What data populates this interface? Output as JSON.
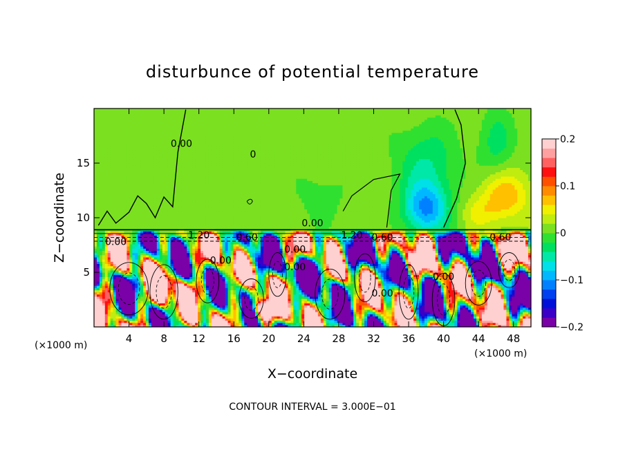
{
  "chart_data": {
    "type": "heatmap",
    "title": "disturbunce of potential temperature",
    "xlabel": "X−coordinate",
    "ylabel": "Z−coordinate",
    "x_unit_label": "(×1000 m)",
    "y_unit_label": "(×1000 m)",
    "footer": "CONTOUR INTERVAL = 3.000E−01",
    "xlim": [
      0,
      50
    ],
    "ylim": [
      0,
      20
    ],
    "x_ticks": [
      {
        "value": 4,
        "label": "4"
      },
      {
        "value": 8,
        "label": "8"
      },
      {
        "value": 12,
        "label": "12"
      },
      {
        "value": 16,
        "label": "16"
      },
      {
        "value": 20,
        "label": "20"
      },
      {
        "value": 24,
        "label": "24"
      },
      {
        "value": 28,
        "label": "28"
      },
      {
        "value": 32,
        "label": "32"
      },
      {
        "value": 36,
        "label": "36"
      },
      {
        "value": 40,
        "label": "40"
      },
      {
        "value": 44,
        "label": "44"
      },
      {
        "value": 48,
        "label": "48"
      }
    ],
    "y_ticks": [
      {
        "value": 5,
        "label": "5"
      },
      {
        "value": 10,
        "label": "10"
      },
      {
        "value": 15,
        "label": "15"
      }
    ],
    "colorbar": {
      "range": [
        -0.2,
        0.2
      ],
      "ticks": [
        {
          "value": 0.2,
          "label": "0.2"
        },
        {
          "value": 0.1,
          "label": "0.1"
        },
        {
          "value": 0,
          "label": "0"
        },
        {
          "value": -0.1,
          "label": "−0.1"
        },
        {
          "value": -0.2,
          "label": "−0.2"
        }
      ],
      "colors": [
        "#7a00a8",
        "#3a00c8",
        "#0010d8",
        "#0040f0",
        "#0080ff",
        "#00b8ff",
        "#00e0e8",
        "#00e8a8",
        "#00e060",
        "#30e030",
        "#7ae020",
        "#c0ec10",
        "#f0f000",
        "#ffc000",
        "#ff8c00",
        "#ff5000",
        "#ff1010",
        "#ff6060",
        "#ffa0a0",
        "#ffd0d0"
      ]
    },
    "contour_labels": [
      {
        "text": "0.00",
        "x": 10.0,
        "y": 16.5
      },
      {
        "text": "0",
        "x": 18.2,
        "y": 15.5
      },
      {
        "text": "0.00",
        "x": 25.0,
        "y": 9.2
      },
      {
        "text": "0.00",
        "x": 2.5,
        "y": 7.5
      },
      {
        "text": "1.20",
        "x": 12.0,
        "y": 8.1
      },
      {
        "text": "0.60",
        "x": 17.5,
        "y": 7.9
      },
      {
        "text": "1.20",
        "x": 29.5,
        "y": 8.1
      },
      {
        "text": "0.60",
        "x": 33.0,
        "y": 7.9
      },
      {
        "text": "0.60",
        "x": 46.5,
        "y": 7.9
      },
      {
        "text": "0.00",
        "x": 23.0,
        "y": 6.8
      },
      {
        "text": "0.00",
        "x": 23.0,
        "y": 5.2
      },
      {
        "text": "0.00",
        "x": 33.0,
        "y": 2.8
      },
      {
        "text": "0.00",
        "x": 40.0,
        "y": 4.3
      },
      {
        "text": "0.00",
        "x": 14.5,
        "y": 5.8
      }
    ]
  }
}
